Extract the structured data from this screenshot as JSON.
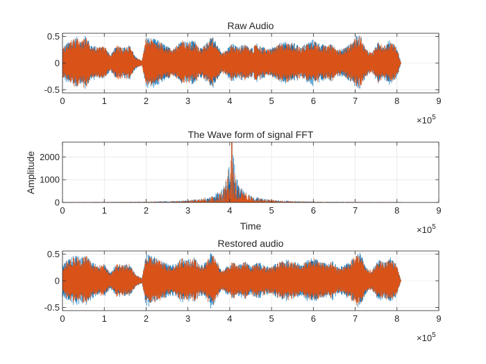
{
  "figure": {
    "background": "#ffffff",
    "axes_color": "#262626",
    "grid_color": "#dfdfdf",
    "series_colors": [
      "#0072bd",
      "#d95319"
    ]
  },
  "chart_data": [
    {
      "type": "line",
      "title": "Raw Audio",
      "xlabel": "",
      "ylabel": "",
      "xlim": [
        0,
        900000
      ],
      "ylim": [
        -0.56,
        0.56
      ],
      "xticks": [
        0,
        100000,
        200000,
        300000,
        400000,
        500000,
        600000,
        700000,
        800000,
        900000
      ],
      "xtick_labels": [
        "0",
        "1",
        "2",
        "3",
        "4",
        "5",
        "6",
        "7",
        "8",
        "9"
      ],
      "yticks": [
        -0.5,
        0,
        0.5
      ],
      "ytick_labels": [
        "-0.5",
        "0",
        "0.5"
      ],
      "x_exponent": "10",
      "x_exponent_power": "5",
      "grid": true,
      "num_samples": 810000,
      "envelope": {
        "x": [
          0,
          10000,
          20000,
          35000,
          45000,
          55000,
          70000,
          85000,
          100000,
          115000,
          130000,
          145000,
          160000,
          175000,
          190000,
          200000,
          210000,
          225000,
          240000,
          255000,
          270000,
          285000,
          300000,
          315000,
          330000,
          345000,
          355000,
          365000,
          380000,
          395000,
          405000,
          420000,
          435000,
          450000,
          465000,
          480000,
          495000,
          510000,
          525000,
          540000,
          555000,
          570000,
          585000,
          600000,
          615000,
          630000,
          645000,
          660000,
          675000,
          690000,
          700000,
          712000,
          725000,
          740000,
          755000,
          770000,
          785000,
          800000,
          810000
        ],
        "amplitude": [
          0.3,
          0.38,
          0.45,
          0.5,
          0.42,
          0.53,
          0.35,
          0.3,
          0.34,
          0.15,
          0.35,
          0.3,
          0.34,
          0.12,
          0.05,
          0.5,
          0.48,
          0.45,
          0.38,
          0.3,
          0.32,
          0.45,
          0.4,
          0.45,
          0.28,
          0.38,
          0.55,
          0.45,
          0.2,
          0.28,
          0.38,
          0.3,
          0.38,
          0.28,
          0.38,
          0.3,
          0.27,
          0.33,
          0.4,
          0.4,
          0.38,
          0.3,
          0.4,
          0.45,
          0.38,
          0.33,
          0.38,
          0.25,
          0.3,
          0.38,
          0.5,
          0.55,
          0.28,
          0.2,
          0.4,
          0.35,
          0.45,
          0.3,
          0.0
        ]
      }
    },
    {
      "type": "line",
      "title": "The Wave form of signal FFT",
      "xlabel": "Time",
      "ylabel": "Amplitude",
      "xlim": [
        0,
        900000
      ],
      "ylim": [
        0,
        2650
      ],
      "xticks": [
        0,
        100000,
        200000,
        300000,
        400000,
        500000,
        600000,
        700000,
        800000,
        900000
      ],
      "xtick_labels": [
        "0",
        "1",
        "2",
        "3",
        "4",
        "5",
        "6",
        "7",
        "8",
        "9"
      ],
      "yticks": [
        0,
        1000,
        2000
      ],
      "ytick_labels": [
        "0",
        "1000",
        "2000"
      ],
      "x_exponent": "10",
      "x_exponent_power": "5",
      "grid": true,
      "num_samples": 810000,
      "spectrum": {
        "center": 405000,
        "peak": 2650,
        "baseline": 15,
        "x": [
          0,
          100000,
          200000,
          250000,
          300000,
          330000,
          360000,
          380000,
          392000,
          398000,
          402000,
          405000,
          408000,
          412000,
          418000,
          430000,
          450000,
          480000,
          510000,
          560000,
          610000,
          700000,
          810000
        ],
        "envelope": [
          20,
          25,
          35,
          60,
          100,
          170,
          300,
          600,
          1100,
          1800,
          2400,
          2650,
          2400,
          1800,
          1100,
          600,
          300,
          170,
          100,
          60,
          35,
          25,
          20
        ]
      }
    },
    {
      "type": "line",
      "title": "Restored audio",
      "xlabel": "",
      "ylabel": "",
      "xlim": [
        0,
        900000
      ],
      "ylim": [
        -0.56,
        0.56
      ],
      "xticks": [
        0,
        100000,
        200000,
        300000,
        400000,
        500000,
        600000,
        700000,
        800000,
        900000
      ],
      "xtick_labels": [
        "0",
        "1",
        "2",
        "3",
        "4",
        "5",
        "6",
        "7",
        "8",
        "9"
      ],
      "yticks": [
        -0.5,
        0,
        0.5
      ],
      "ytick_labels": [
        "-0.5",
        "0",
        "0.5"
      ],
      "x_exponent": "10",
      "x_exponent_power": "5",
      "grid": true,
      "num_samples": 810000,
      "envelope": {
        "x": [
          0,
          10000,
          20000,
          35000,
          45000,
          55000,
          70000,
          85000,
          100000,
          115000,
          130000,
          145000,
          160000,
          175000,
          190000,
          200000,
          210000,
          225000,
          240000,
          255000,
          270000,
          285000,
          300000,
          315000,
          330000,
          345000,
          355000,
          365000,
          380000,
          395000,
          405000,
          420000,
          435000,
          450000,
          465000,
          480000,
          495000,
          510000,
          525000,
          540000,
          555000,
          570000,
          585000,
          600000,
          615000,
          630000,
          645000,
          660000,
          675000,
          690000,
          700000,
          712000,
          725000,
          740000,
          755000,
          770000,
          785000,
          800000,
          810000
        ],
        "amplitude": [
          0.3,
          0.38,
          0.45,
          0.5,
          0.42,
          0.53,
          0.35,
          0.3,
          0.34,
          0.15,
          0.35,
          0.3,
          0.34,
          0.12,
          0.05,
          0.5,
          0.48,
          0.45,
          0.38,
          0.3,
          0.32,
          0.45,
          0.4,
          0.45,
          0.28,
          0.38,
          0.55,
          0.45,
          0.2,
          0.28,
          0.38,
          0.3,
          0.38,
          0.28,
          0.38,
          0.3,
          0.27,
          0.33,
          0.4,
          0.4,
          0.38,
          0.3,
          0.4,
          0.45,
          0.38,
          0.33,
          0.38,
          0.25,
          0.3,
          0.38,
          0.5,
          0.55,
          0.28,
          0.2,
          0.4,
          0.35,
          0.45,
          0.3,
          0.0
        ]
      }
    }
  ]
}
